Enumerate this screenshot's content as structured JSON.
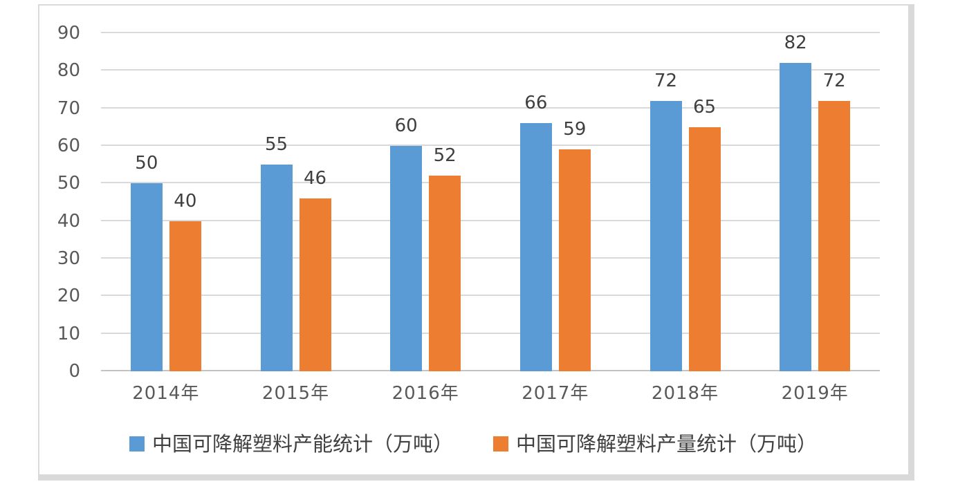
{
  "chart_data": {
    "type": "bar",
    "title": "",
    "categories": [
      "2014年",
      "2015年",
      "2016年",
      "2017年",
      "2018年",
      "2019年"
    ],
    "series": [
      {
        "name": "中国可降解塑料产能统计（万吨）",
        "color": "#5B9BD5",
        "values": [
          50,
          55,
          60,
          66,
          72,
          82
        ]
      },
      {
        "name": "中国可降解塑料产量统计（万吨）",
        "color": "#ED7D31",
        "values": [
          40,
          46,
          52,
          59,
          65,
          72
        ]
      }
    ],
    "y_ticks": [
      0,
      10,
      20,
      30,
      40,
      50,
      60,
      70,
      80,
      90
    ],
    "ylim": [
      0,
      90
    ],
    "xlabel": "",
    "ylabel": "",
    "grid": true,
    "legend_position": "bottom",
    "data_labels": true
  },
  "colors": {
    "series1": "#5B9BD5",
    "series2": "#ED7D31",
    "gridline": "#d9d9d9",
    "axis_line": "#c3c3c3",
    "tick_label": "#595959",
    "data_label": "#3f3f3f",
    "legend_text": "#404040",
    "frame_border": "#d9d9d9",
    "background": "#ffffff"
  }
}
